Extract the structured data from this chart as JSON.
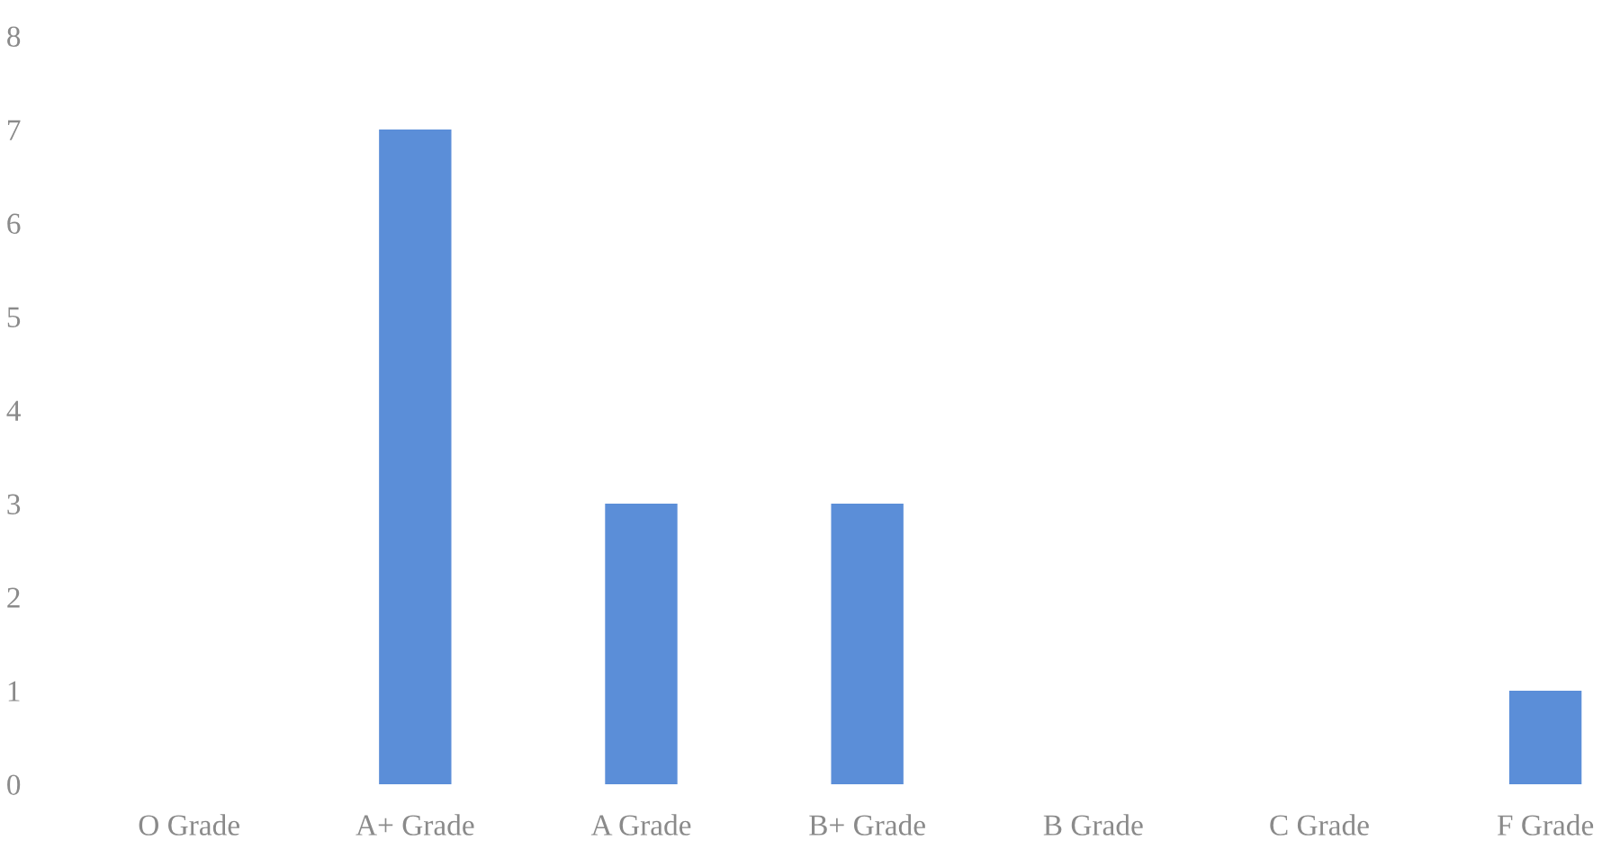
{
  "chart_data": {
    "type": "bar",
    "categories": [
      "O Grade",
      "A+ Grade",
      "A Grade",
      "B+ Grade",
      "B Grade",
      "C Grade",
      "F Grade"
    ],
    "values": [
      0,
      7,
      3,
      3,
      0,
      0,
      1
    ],
    "color": "#5b8ed8",
    "ylim": [
      0,
      8
    ],
    "yticks": [
      0,
      1,
      2,
      3,
      4,
      5,
      6,
      7,
      8
    ],
    "grid": false
  }
}
